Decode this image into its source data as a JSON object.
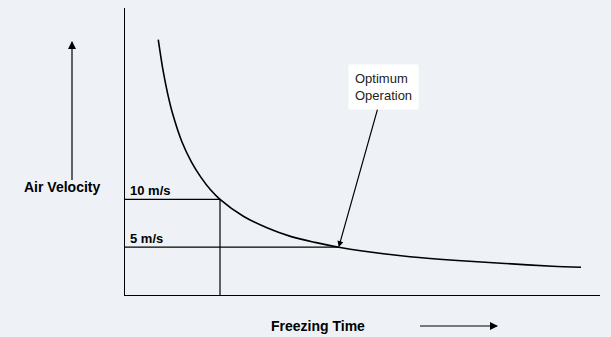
{
  "chart_data": {
    "type": "line",
    "x_label": "Freezing Time",
    "y_label": "Air Velocity",
    "x": [
      7,
      8,
      9,
      10,
      12,
      14,
      16,
      18,
      20,
      25,
      30,
      35,
      40,
      45,
      50,
      60,
      70,
      80,
      90,
      96
    ],
    "values": [
      26.7,
      23.5,
      21,
      19,
      16,
      13.9,
      12.3,
      11,
      10,
      8.2,
      7,
      6.1,
      5.5,
      5,
      4.6,
      4,
      3.6,
      3.3,
      3,
      2.9
    ],
    "color": "#000000",
    "xlim": [
      0,
      100
    ],
    "ylim": [
      0,
      30
    ],
    "tick_labels": false,
    "grid": false,
    "guides": [
      {
        "label": "10 m/s",
        "x": [
          0,
          20,
          20
        ],
        "y": [
          10,
          10,
          0
        ]
      },
      {
        "label": "5 m/s",
        "x": [
          0,
          45
        ],
        "y": [
          5,
          5
        ]
      }
    ],
    "annotations": [
      {
        "text": "Optimum\nOperation",
        "x": 45,
        "y": 5
      }
    ]
  }
}
